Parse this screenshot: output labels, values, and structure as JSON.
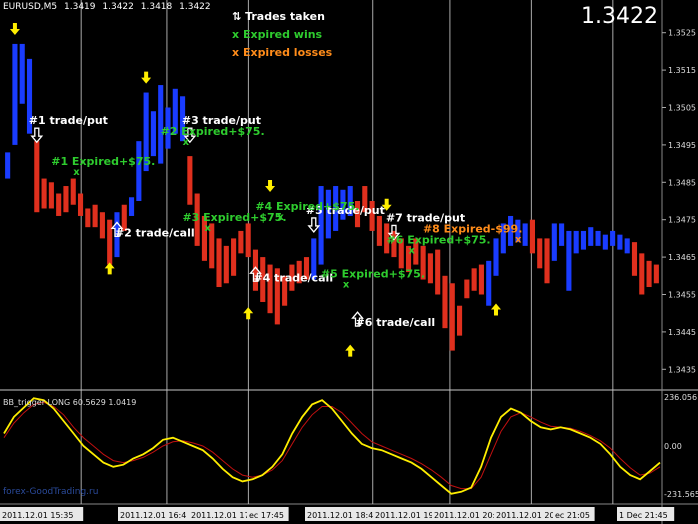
{
  "header": {
    "symbol": "EURUSD,M5",
    "prices": [
      "1.3419",
      "1.3422",
      "1.3418",
      "1.3422"
    ]
  },
  "big_price": "1.3422",
  "legend": {
    "trades": "Trades taken",
    "wins": "Expired wins",
    "losses": "Expired losses",
    "win_mark": "x",
    "loss_mark": "x"
  },
  "colors": {
    "background": "#000000",
    "bear": "#e0301e",
    "bull": "#1a3cff",
    "win_text": "#2ecc2e",
    "loss_text": "#ff8c1a",
    "arrow": "#ffee00",
    "trade_text": "#ffffff",
    "signal_line": "#ffee00",
    "trigger_line": "#c01010",
    "grid": "#c8c8c8"
  },
  "indicator": {
    "label": "BB_trigger  LONG 60.5629 1.0419",
    "levels": [
      "236.056",
      "0.00",
      "-231.565"
    ]
  },
  "watermark": "forex-GoodTrading.ru",
  "chart_data": {
    "type": "candlestick",
    "y_axis_ticks": [
      "1.3525",
      "1.3515",
      "1.3505",
      "1.3495",
      "1.3485",
      "1.3475",
      "1.3465",
      "1.3455",
      "1.3445",
      "1.3435"
    ],
    "ylim": [
      1.343,
      1.353
    ],
    "x_tick_labels": [
      "2011.12.01 15:35",
      "2011.12.01 16:4",
      "2011.12.01 17:30",
      "ec 17:45",
      "2011.12.01 18:45",
      "2011.12.01 19",
      "2011.12.01 20:",
      "2011.12.01 20:50",
      "ec 21:05",
      "1 Dec 21:45"
    ],
    "candles": [
      {
        "o": 1.3486,
        "c": 1.3493,
        "dir": "up"
      },
      {
        "o": 1.3495,
        "c": 1.3522,
        "dir": "up"
      },
      {
        "o": 1.3522,
        "c": 1.3506,
        "dir": "up"
      },
      {
        "o": 1.3518,
        "c": 1.3498,
        "dir": "up"
      },
      {
        "o": 1.3496,
        "c": 1.3477,
        "dir": "down"
      },
      {
        "o": 1.3486,
        "c": 1.3478,
        "dir": "down"
      },
      {
        "o": 1.3485,
        "c": 1.3478,
        "dir": "down"
      },
      {
        "o": 1.3482,
        "c": 1.3476,
        "dir": "down"
      },
      {
        "o": 1.3484,
        "c": 1.3477,
        "dir": "down"
      },
      {
        "o": 1.3486,
        "c": 1.3479,
        "dir": "down"
      },
      {
        "o": 1.3482,
        "c": 1.3476,
        "dir": "down"
      },
      {
        "o": 1.3478,
        "c": 1.3473,
        "dir": "down"
      },
      {
        "o": 1.3479,
        "c": 1.3473,
        "dir": "down"
      },
      {
        "o": 1.3477,
        "c": 1.347,
        "dir": "down"
      },
      {
        "o": 1.3475,
        "c": 1.3463,
        "dir": "down"
      },
      {
        "o": 1.3465,
        "c": 1.3477,
        "dir": "up"
      },
      {
        "o": 1.3472,
        "c": 1.3479,
        "dir": "down"
      },
      {
        "o": 1.3476,
        "c": 1.3481,
        "dir": "up"
      },
      {
        "o": 1.348,
        "c": 1.3496,
        "dir": "up"
      },
      {
        "o": 1.3488,
        "c": 1.3509,
        "dir": "up"
      },
      {
        "o": 1.3492,
        "c": 1.3504,
        "dir": "up"
      },
      {
        "o": 1.349,
        "c": 1.3511,
        "dir": "up"
      },
      {
        "o": 1.3494,
        "c": 1.3505,
        "dir": "up"
      },
      {
        "o": 1.3498,
        "c": 1.351,
        "dir": "up"
      },
      {
        "o": 1.3496,
        "c": 1.3508,
        "dir": "up"
      },
      {
        "o": 1.3492,
        "c": 1.3479,
        "dir": "down"
      },
      {
        "o": 1.3482,
        "c": 1.3468,
        "dir": "down"
      },
      {
        "o": 1.3476,
        "c": 1.3464,
        "dir": "down"
      },
      {
        "o": 1.3474,
        "c": 1.3462,
        "dir": "down"
      },
      {
        "o": 1.347,
        "c": 1.3457,
        "dir": "down"
      },
      {
        "o": 1.3468,
        "c": 1.3458,
        "dir": "down"
      },
      {
        "o": 1.347,
        "c": 1.346,
        "dir": "down"
      },
      {
        "o": 1.3472,
        "c": 1.3466,
        "dir": "down"
      },
      {
        "o": 1.3474,
        "c": 1.3465,
        "dir": "down"
      },
      {
        "o": 1.3467,
        "c": 1.3456,
        "dir": "down"
      },
      {
        "o": 1.3465,
        "c": 1.3453,
        "dir": "down"
      },
      {
        "o": 1.3463,
        "c": 1.345,
        "dir": "down"
      },
      {
        "o": 1.3462,
        "c": 1.3447,
        "dir": "down"
      },
      {
        "o": 1.346,
        "c": 1.3452,
        "dir": "down"
      },
      {
        "o": 1.3463,
        "c": 1.3456,
        "dir": "down"
      },
      {
        "o": 1.3464,
        "c": 1.3458,
        "dir": "down"
      },
      {
        "o": 1.3465,
        "c": 1.3459,
        "dir": "down"
      },
      {
        "o": 1.3459,
        "c": 1.347,
        "dir": "up"
      },
      {
        "o": 1.3463,
        "c": 1.3484,
        "dir": "up"
      },
      {
        "o": 1.347,
        "c": 1.3483,
        "dir": "up"
      },
      {
        "o": 1.3472,
        "c": 1.3484,
        "dir": "up"
      },
      {
        "o": 1.3475,
        "c": 1.3483,
        "dir": "up"
      },
      {
        "o": 1.3476,
        "c": 1.3484,
        "dir": "up"
      },
      {
        "o": 1.3473,
        "c": 1.348,
        "dir": "down"
      },
      {
        "o": 1.3477,
        "c": 1.3484,
        "dir": "down"
      },
      {
        "o": 1.348,
        "c": 1.3472,
        "dir": "down"
      },
      {
        "o": 1.3476,
        "c": 1.3468,
        "dir": "down"
      },
      {
        "o": 1.3474,
        "c": 1.3466,
        "dir": "down"
      },
      {
        "o": 1.3472,
        "c": 1.3465,
        "dir": "down"
      },
      {
        "o": 1.347,
        "c": 1.3462,
        "dir": "down"
      },
      {
        "o": 1.3468,
        "c": 1.3461,
        "dir": "down"
      },
      {
        "o": 1.347,
        "c": 1.3463,
        "dir": "down"
      },
      {
        "o": 1.3468,
        "c": 1.3459,
        "dir": "down"
      },
      {
        "o": 1.3466,
        "c": 1.3458,
        "dir": "down"
      },
      {
        "o": 1.3467,
        "c": 1.3455,
        "dir": "down"
      },
      {
        "o": 1.346,
        "c": 1.3446,
        "dir": "down"
      },
      {
        "o": 1.3458,
        "c": 1.344,
        "dir": "down"
      },
      {
        "o": 1.3452,
        "c": 1.3444,
        "dir": "down"
      },
      {
        "o": 1.3454,
        "c": 1.3459,
        "dir": "down"
      },
      {
        "o": 1.3456,
        "c": 1.3462,
        "dir": "down"
      },
      {
        "o": 1.3455,
        "c": 1.3463,
        "dir": "down"
      },
      {
        "o": 1.3452,
        "c": 1.3464,
        "dir": "up"
      },
      {
        "o": 1.346,
        "c": 1.347,
        "dir": "up"
      },
      {
        "o": 1.3466,
        "c": 1.3474,
        "dir": "up"
      },
      {
        "o": 1.3468,
        "c": 1.3476,
        "dir": "up"
      },
      {
        "o": 1.3469,
        "c": 1.3475,
        "dir": "up"
      },
      {
        "o": 1.3468,
        "c": 1.3474,
        "dir": "up"
      },
      {
        "o": 1.3466,
        "c": 1.3475,
        "dir": "down"
      },
      {
        "o": 1.347,
        "c": 1.3462,
        "dir": "down"
      },
      {
        "o": 1.347,
        "c": 1.3458,
        "dir": "down"
      },
      {
        "o": 1.3464,
        "c": 1.3474,
        "dir": "up"
      },
      {
        "o": 1.3468,
        "c": 1.3474,
        "dir": "up"
      },
      {
        "o": 1.3456,
        "c": 1.3472,
        "dir": "up"
      },
      {
        "o": 1.3466,
        "c": 1.3472,
        "dir": "up"
      },
      {
        "o": 1.3467,
        "c": 1.3472,
        "dir": "up"
      },
      {
        "o": 1.3468,
        "c": 1.3473,
        "dir": "up"
      },
      {
        "o": 1.3468,
        "c": 1.3472,
        "dir": "up"
      },
      {
        "o": 1.3467,
        "c": 1.3471,
        "dir": "up"
      },
      {
        "o": 1.3468,
        "c": 1.3472,
        "dir": "up"
      },
      {
        "o": 1.3467,
        "c": 1.3471,
        "dir": "up"
      },
      {
        "o": 1.3466,
        "c": 1.347,
        "dir": "up"
      },
      {
        "o": 1.3469,
        "c": 1.346,
        "dir": "down"
      },
      {
        "o": 1.3466,
        "c": 1.3455,
        "dir": "down"
      },
      {
        "o": 1.3464,
        "c": 1.3457,
        "dir": "down"
      },
      {
        "o": 1.3463,
        "c": 1.3458,
        "dir": "down"
      }
    ],
    "session_dividers": [
      18,
      38,
      57,
      86,
      104,
      123,
      142
    ],
    "annotations": [
      {
        "text": "#1 trade/put",
        "kind": "trade",
        "i": 4,
        "price": 1.35,
        "arrow": "down"
      },
      {
        "text": "#2 trade/call",
        "kind": "trade",
        "i": 15,
        "price": 1.347,
        "arrow": "up"
      },
      {
        "text": "#3 trade/put",
        "kind": "trade",
        "i": 25,
        "price": 1.35,
        "arrow": "down"
      },
      {
        "text": "#4 trade/call",
        "kind": "trade",
        "i": 34,
        "price": 1.3458,
        "arrow": "up"
      },
      {
        "text": "#5 trade/put",
        "kind": "trade",
        "i": 42,
        "price": 1.3476,
        "arrow": "down"
      },
      {
        "text": "#6 trade/call",
        "kind": "trade",
        "i": 48,
        "price": 1.3446,
        "arrow": "up"
      },
      {
        "text": "#7 trade/put",
        "kind": "trade",
        "i": 53,
        "price": 1.3474,
        "arrow": "down"
      },
      {
        "text": "#1 Expired+$75.",
        "kind": "win",
        "i": 9,
        "price": 1.3488
      },
      {
        "text": "#2 Expired+$75.",
        "kind": "win",
        "i": 24,
        "price": 1.3496
      },
      {
        "text": "#3 Expired+$75.",
        "kind": "win",
        "i": 27,
        "price": 1.3473
      },
      {
        "text": "#4 Expired+$75.",
        "kind": "win",
        "i": 37,
        "price": 1.3476
      },
      {
        "text": "#5 Expired+$75.",
        "kind": "win",
        "i": 46,
        "price": 1.3458
      },
      {
        "text": "#6 Expired+$75.",
        "kind": "win",
        "i": 55,
        "price": 1.3467
      },
      {
        "text": "#8 Expired-$99.",
        "kind": "loss",
        "i": 60,
        "price": 1.347
      }
    ],
    "extreme_arrows": [
      {
        "i": 1,
        "price": 1.3526,
        "dir": "down"
      },
      {
        "i": 14,
        "price": 1.3462,
        "dir": "up"
      },
      {
        "i": 19,
        "price": 1.3513,
        "dir": "down"
      },
      {
        "i": 33,
        "price": 1.345,
        "dir": "up"
      },
      {
        "i": 36,
        "price": 1.3484,
        "dir": "down"
      },
      {
        "i": 47,
        "price": 1.344,
        "dir": "up"
      },
      {
        "i": 52,
        "price": 1.3479,
        "dir": "down"
      },
      {
        "i": 67,
        "price": 1.3451,
        "dir": "up"
      }
    ],
    "oscillator": {
      "signal": [
        60,
        140,
        185,
        230,
        220,
        180,
        120,
        60,
        0,
        -40,
        -80,
        -100,
        -90,
        -60,
        -40,
        -10,
        30,
        40,
        20,
        0,
        -20,
        -60,
        -110,
        -150,
        -170,
        -160,
        -140,
        -100,
        -40,
        60,
        140,
        200,
        220,
        180,
        120,
        60,
        10,
        -10,
        -20,
        -40,
        -60,
        -80,
        -110,
        -150,
        -190,
        -230,
        -220,
        -200,
        -100,
        40,
        140,
        180,
        160,
        120,
        90,
        80,
        90,
        80,
        60,
        40,
        10,
        -40,
        -100,
        -140,
        -160,
        -120,
        -80
      ],
      "trigger": [
        40,
        110,
        160,
        200,
        210,
        190,
        150,
        90,
        40,
        0,
        -40,
        -70,
        -80,
        -70,
        -55,
        -30,
        0,
        20,
        25,
        15,
        0,
        -30,
        -70,
        -110,
        -140,
        -150,
        -140,
        -115,
        -70,
        10,
        90,
        150,
        190,
        190,
        160,
        110,
        60,
        20,
        0,
        -20,
        -40,
        -60,
        -85,
        -115,
        -150,
        -190,
        -205,
        -205,
        -150,
        -40,
        70,
        140,
        160,
        140,
        115,
        95,
        90,
        85,
        70,
        50,
        25,
        -10,
        -60,
        -105,
        -140,
        -130,
        -100
      ],
      "ylim": [
        -250,
        250
      ]
    }
  }
}
